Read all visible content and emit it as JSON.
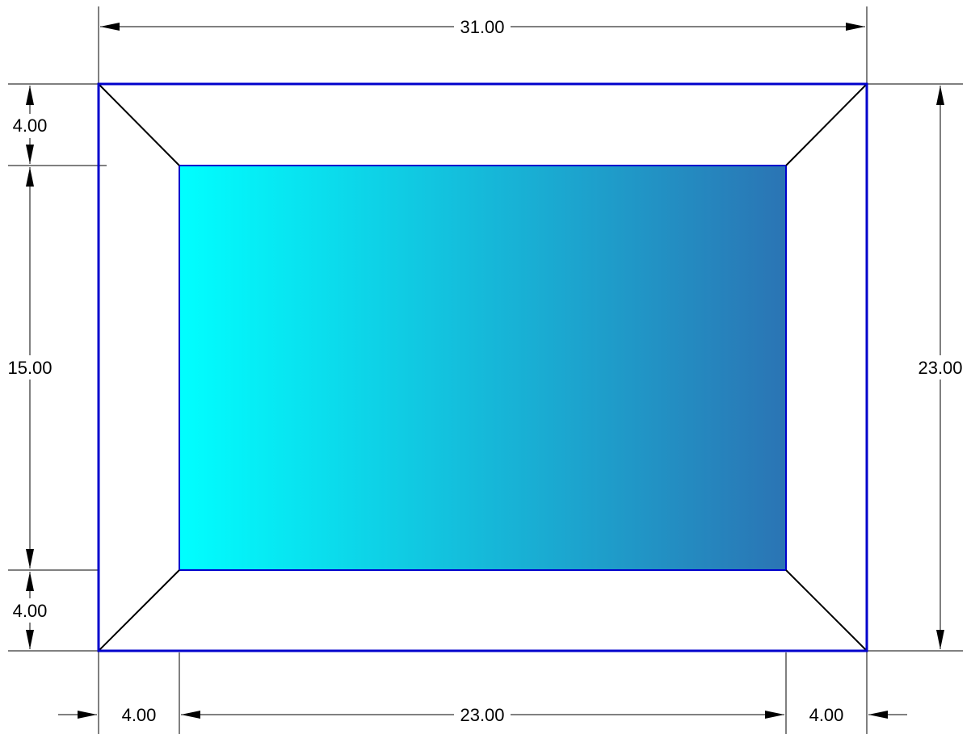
{
  "dimensions": {
    "top_overall": "31.00",
    "right_overall": "23.00",
    "left_top": "4.00",
    "left_middle": "15.00",
    "left_bottom": "4.00",
    "bottom_left": "4.00",
    "bottom_middle": "23.00",
    "bottom_right": "4.00"
  },
  "colors": {
    "outline": "#0000cc",
    "gradient_start": "#00ffff",
    "gradient_end": "#2b74b4",
    "bevel_lines": "#000000",
    "dimension_lines": "#000000"
  }
}
